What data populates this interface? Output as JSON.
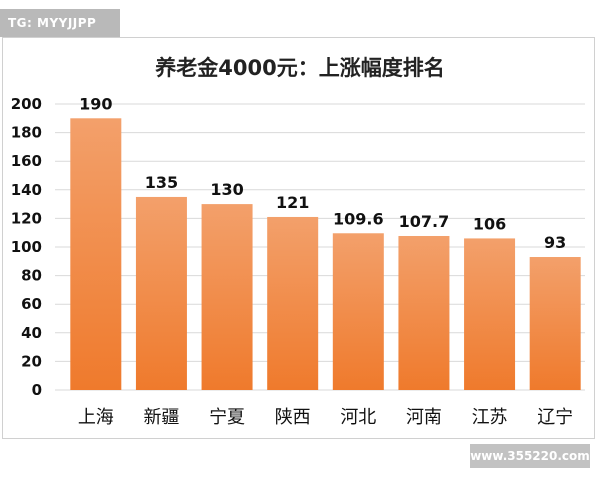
{
  "badge_text": "TG: MYYJJPP",
  "watermark_text": "www.355220.com",
  "chart_data": {
    "type": "bar",
    "title": "养老金4000元：上涨幅度排名",
    "xlabel": "",
    "ylabel": "",
    "categories": [
      "上海",
      "新疆",
      "宁夏",
      "陕西",
      "河北",
      "河南",
      "江苏",
      "辽宁"
    ],
    "values": [
      190,
      135,
      130,
      121,
      109.6,
      107.7,
      106,
      93
    ],
    "data_labels": [
      "190",
      "135",
      "130",
      "121",
      "109.6",
      "107.7",
      "106",
      "93"
    ],
    "ylim": [
      0,
      200
    ],
    "yticks": [
      0,
      20,
      40,
      60,
      80,
      100,
      120,
      140,
      160,
      180,
      200
    ],
    "grid": true,
    "bar_color": "#ef7a2c",
    "bar_color_light": "#f3a06b"
  }
}
